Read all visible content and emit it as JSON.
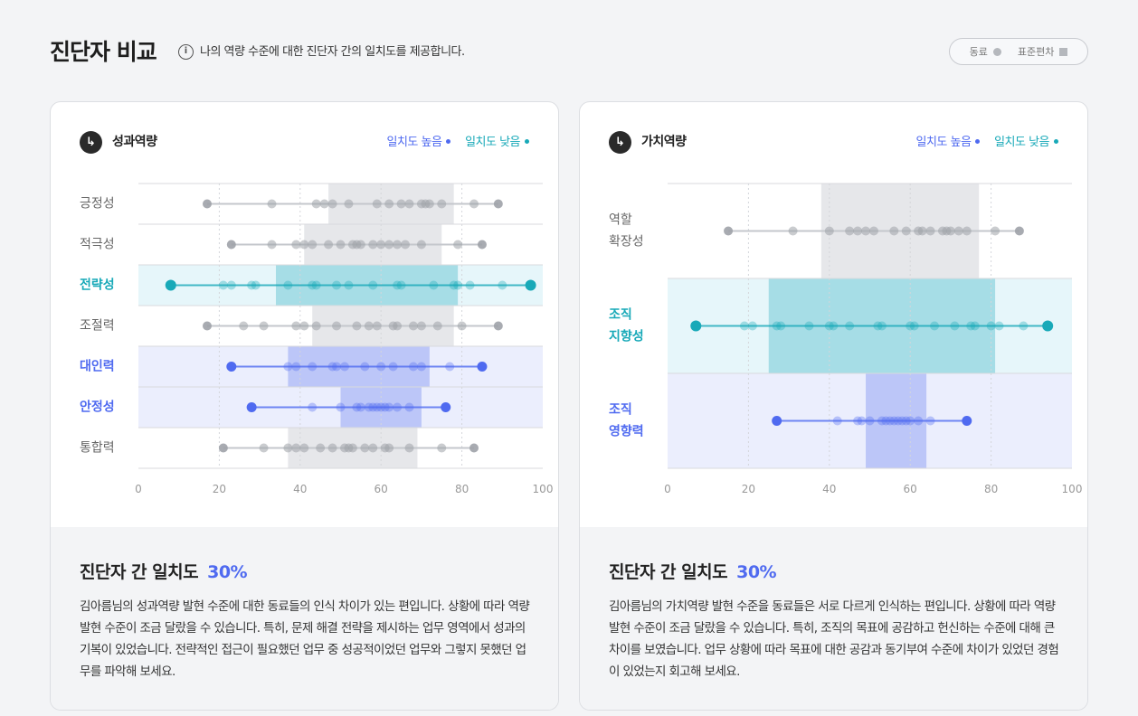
{
  "header": {
    "title": "진단자 비교",
    "info_icon": "i",
    "description": "나의 역량 수준에 대한 진단자 간의 일치도를 제공합니다.",
    "legend_peer": "동료",
    "legend_std": "표준편차"
  },
  "colors": {
    "high": "#4f6af0",
    "low": "#18a9b8",
    "gray": "#9ea2a8"
  },
  "chart_data": [
    {
      "type": "dot-range",
      "title": "성과역량",
      "icon": "arrow-icon",
      "legend": [
        "일치도 높음",
        "일치도 낮음"
      ],
      "xlim": [
        0,
        100
      ],
      "xticks": [
        0,
        20,
        40,
        60,
        80,
        100
      ],
      "rows": [
        {
          "label": "긍정성",
          "status": "normal",
          "std": [
            47,
            78
          ],
          "points": [
            17,
            33,
            44,
            46,
            48,
            52,
            59,
            62,
            65,
            67,
            70,
            71,
            72,
            75,
            83,
            89
          ]
        },
        {
          "label": "적극성",
          "status": "normal",
          "std": [
            41,
            75
          ],
          "points": [
            23,
            33,
            39,
            41,
            43,
            47,
            50,
            53,
            54,
            55,
            58,
            60,
            62,
            64,
            66,
            70,
            79,
            85
          ]
        },
        {
          "label": "전략성",
          "status": "low",
          "std": [
            34,
            79
          ],
          "points": [
            8,
            21,
            23,
            28,
            29,
            37,
            43,
            44,
            49,
            52,
            58,
            64,
            65,
            73,
            78,
            79,
            82,
            90,
            97
          ]
        },
        {
          "label": "조절력",
          "status": "normal",
          "std": [
            43,
            78
          ],
          "points": [
            17,
            26,
            31,
            39,
            41,
            44,
            49,
            54,
            57,
            59,
            63,
            64,
            68,
            70,
            74,
            80,
            89
          ]
        },
        {
          "label": "대인력",
          "status": "high",
          "std": [
            37,
            72
          ],
          "points": [
            23,
            37,
            39,
            43,
            48,
            49,
            51,
            56,
            60,
            63,
            68,
            70,
            77,
            85
          ]
        },
        {
          "label": "안정성",
          "status": "high",
          "std": [
            50,
            70
          ],
          "points": [
            28,
            43,
            50,
            54,
            55,
            57,
            58,
            59,
            60,
            61,
            62,
            64,
            67,
            76
          ]
        },
        {
          "label": "통합력",
          "status": "normal",
          "std": [
            37,
            69
          ],
          "points": [
            21,
            31,
            37,
            39,
            41,
            45,
            48,
            51,
            52,
            53,
            56,
            58,
            61,
            62,
            67,
            75,
            83
          ]
        }
      ],
      "footer": {
        "title": "진단자 간 일치도",
        "percent": "30%",
        "text": "김아름님의 성과역량 발현 수준에 대한 동료들의 인식 차이가 있는 편입니다. 상황에 따라 역량 발현 수준이 조금 달랐을 수 있습니다. 특히, 문제 해결 전략을 제시하는 업무 영역에서 성과의 기복이 있었습니다. 전략적인 접근이 필요했던 업무 중 성공적이었던 업무와 그렇지 못했던 업무를 파악해 보세요."
      }
    },
    {
      "type": "dot-range",
      "title": "가치역량",
      "icon": "arrow-icon",
      "legend": [
        "일치도 높음",
        "일치도 낮음"
      ],
      "xlim": [
        0,
        100
      ],
      "xticks": [
        0,
        20,
        40,
        60,
        80,
        100
      ],
      "rows": [
        {
          "label": "역할\n확장성",
          "status": "normal",
          "std": [
            38,
            77
          ],
          "points": [
            15,
            31,
            40,
            45,
            47,
            49,
            51,
            56,
            59,
            62,
            63,
            65,
            68,
            69,
            70,
            72,
            74,
            81,
            87
          ]
        },
        {
          "label": "조직\n지향성",
          "status": "low",
          "std": [
            25,
            81
          ],
          "points": [
            7,
            19,
            21,
            27,
            28,
            35,
            40,
            41,
            45,
            52,
            53,
            60,
            61,
            66,
            71,
            75,
            76,
            80,
            82,
            88,
            94
          ]
        },
        {
          "label": "조직\n영향력",
          "status": "high",
          "std": [
            49,
            64
          ],
          "points": [
            27,
            42,
            47,
            48,
            50,
            53,
            54,
            55,
            56,
            57,
            58,
            59,
            60,
            62,
            65,
            74
          ]
        }
      ],
      "footer": {
        "title": "진단자 간 일치도",
        "percent": "30%",
        "text": "김아름님의 가치역량 발현 수준을 동료들은 서로 다르게 인식하는 편입니다. 상황에 따라 역량 발현 수준이 조금 달랐을 수 있습니다. 특히, 조직의 목표에 공감하고 헌신하는 수준에 대해 큰 차이를 보였습니다. 업무 상황에 따라 목표에 대한 공감과 동기부여 수준에 차이가 있었던 경험이 있었는지 회고해 보세요."
      }
    }
  ]
}
